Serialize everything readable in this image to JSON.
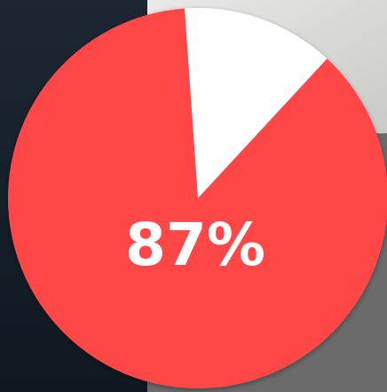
{
  "chart_data": {
    "type": "pie",
    "values": [
      87,
      13
    ],
    "value_labels": [
      "87%",
      null
    ],
    "colors": [
      "#ff4747",
      "#ffffff"
    ]
  }
}
